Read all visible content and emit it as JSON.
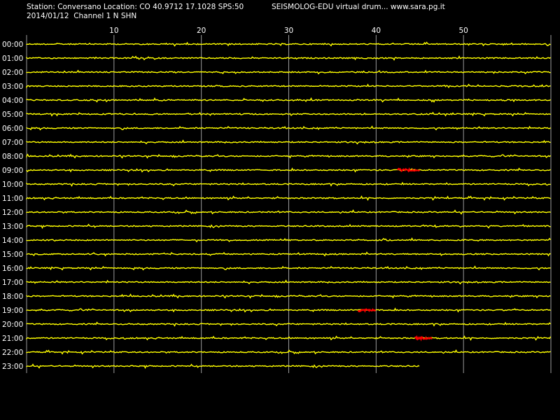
{
  "header": {
    "station_line": "Station: Conversano Location: CO 40.9712 17.1028 SPS:50",
    "app_line": "SEISMOLOG-EDU virtual drum... www.sara.pg.it",
    "date_line": "2014/01/12  Channel 1 N SHN"
  },
  "colors": {
    "background": "#000000",
    "trace": "#ffff00",
    "event": "#ff0000",
    "grid": "#9a9a9a",
    "text": "#ffffff"
  },
  "chart_data": {
    "type": "line",
    "title": "",
    "xlabel": "",
    "ylabel": "",
    "x_unit": "minutes",
    "xlim": [
      0,
      60
    ],
    "x_ticks": [
      10,
      20,
      30,
      40,
      50
    ],
    "x_tick_labels": [
      "10",
      "20",
      "30",
      "40",
      "50"
    ],
    "grid": true,
    "rows": [
      {
        "label": "00:00",
        "end_minute": 60
      },
      {
        "label": "01:00",
        "end_minute": 60
      },
      {
        "label": "02:00",
        "end_minute": 60
      },
      {
        "label": "03:00",
        "end_minute": 60
      },
      {
        "label": "04:00",
        "end_minute": 60
      },
      {
        "label": "05:00",
        "end_minute": 60
      },
      {
        "label": "06:00",
        "end_minute": 60
      },
      {
        "label": "07:00",
        "end_minute": 60
      },
      {
        "label": "08:00",
        "end_minute": 60
      },
      {
        "label": "09:00",
        "end_minute": 60
      },
      {
        "label": "10:00",
        "end_minute": 60
      },
      {
        "label": "11:00",
        "end_minute": 60
      },
      {
        "label": "12:00",
        "end_minute": 60
      },
      {
        "label": "13:00",
        "end_minute": 60
      },
      {
        "label": "14:00",
        "end_minute": 60
      },
      {
        "label": "15:00",
        "end_minute": 60
      },
      {
        "label": "16:00",
        "end_minute": 60
      },
      {
        "label": "17:00",
        "end_minute": 60
      },
      {
        "label": "18:00",
        "end_minute": 60
      },
      {
        "label": "19:00",
        "end_minute": 60
      },
      {
        "label": "20:00",
        "end_minute": 60
      },
      {
        "label": "21:00",
        "end_minute": 60
      },
      {
        "label": "22:00",
        "end_minute": 60
      },
      {
        "label": "23:00",
        "end_minute": 45
      }
    ],
    "events": [
      {
        "row": "09:00",
        "start_minute": 42.5,
        "end_minute": 45
      },
      {
        "row": "19:00",
        "start_minute": 38,
        "end_minute": 40
      },
      {
        "row": "21:00",
        "start_minute": 44.5,
        "end_minute": 46.5
      }
    ]
  }
}
